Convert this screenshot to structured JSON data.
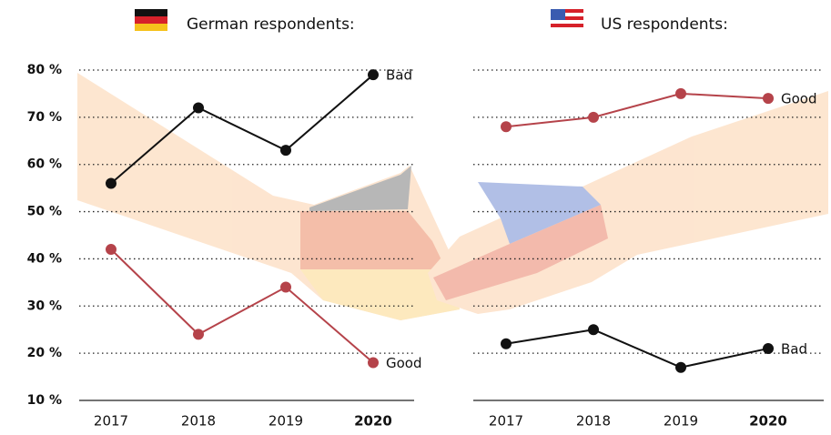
{
  "chart_data": [
    {
      "type": "line",
      "title": "German respondents:",
      "title_color": "#b5434a",
      "categories": [
        "2017",
        "2018",
        "2019",
        "2020"
      ],
      "series": [
        {
          "name": "Bad",
          "color": "#111111",
          "values": [
            56,
            72,
            63,
            79
          ]
        },
        {
          "name": "Good",
          "color": "#b5434a",
          "values": [
            42,
            24,
            34,
            18
          ]
        }
      ],
      "ylim": [
        10,
        80
      ],
      "yticks": [
        {
          "value": 10,
          "label": "10 %"
        },
        {
          "value": 20,
          "label": "20 %"
        },
        {
          "value": 30,
          "label": "30 %"
        },
        {
          "value": 40,
          "label": "40 %"
        },
        {
          "value": 50,
          "label": "50 %"
        },
        {
          "value": 60,
          "label": "60 %"
        },
        {
          "value": 70,
          "label": "70 %"
        },
        {
          "value": 80,
          "label": "80 %"
        }
      ]
    },
    {
      "type": "line",
      "title": "US respondents:",
      "title_color": "#111111",
      "categories": [
        "2017",
        "2018",
        "2019",
        "2020"
      ],
      "series": [
        {
          "name": "Good",
          "color": "#b5434a",
          "values": [
            68,
            70,
            75,
            74
          ]
        },
        {
          "name": "Bad",
          "color": "#111111",
          "values": [
            22,
            25,
            17,
            21
          ]
        }
      ],
      "ylim": [
        10,
        80
      ],
      "yticks": [
        10,
        20,
        30,
        40,
        50,
        60,
        70,
        80
      ]
    }
  ]
}
